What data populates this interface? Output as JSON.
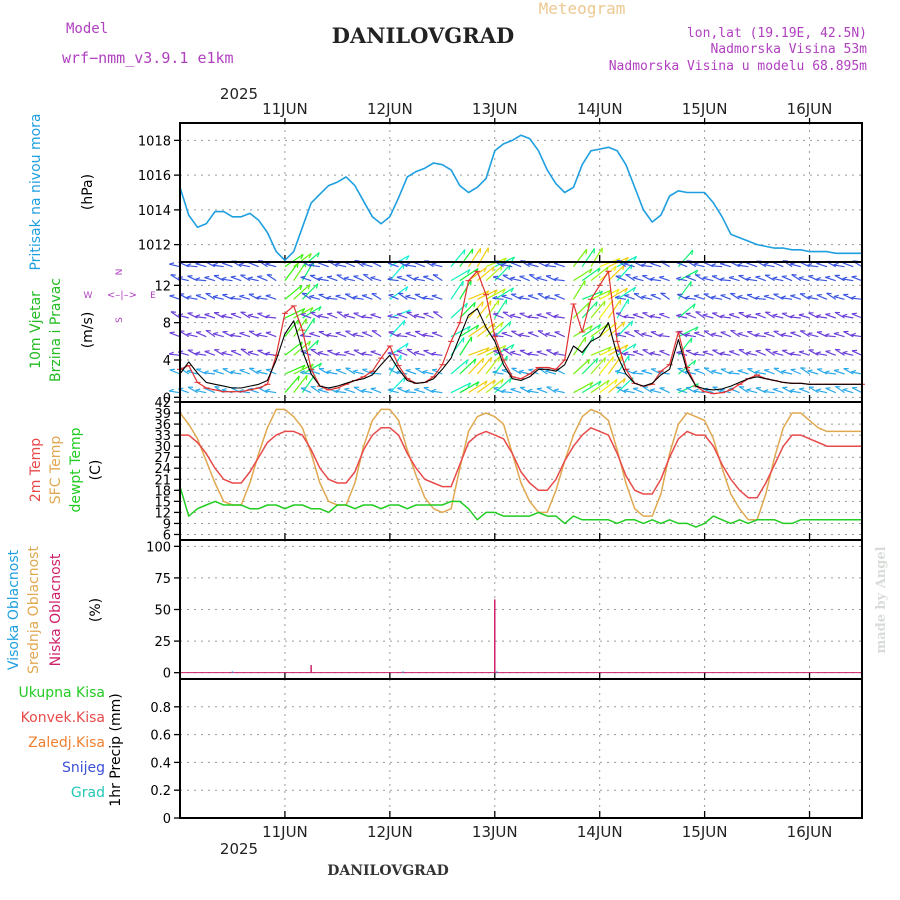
{
  "header": {
    "model_label": "Model",
    "model_name": "wrf−nmm_v3.9.1  e1km",
    "app_title": "Meteogram",
    "location": "DANILOVGRAD",
    "lonlat": "lon,lat (19.19E, 42.5N)",
    "elevation": "Nadmorska Visina 53m",
    "model_elevation": "Nadmorska Visina u modelu 68.895m",
    "year": "2025",
    "footer_location": "DANILOVGRAD",
    "credit": "made by Angel"
  },
  "colors": {
    "pressure": "#1e9fe0",
    "t2m": "#e84a4a",
    "sfc": "#e0a850",
    "dew": "#22cc22",
    "wind_speed": "#000000",
    "gust": "#e03030",
    "cloud_high": "#1e9fe0",
    "cloud_mid": "#e0a850",
    "cloud_low": "#d0206a",
    "title_purple": "#b040c0",
    "precip_total": "#22cc22",
    "precip_conv": "#e84a4a",
    "precip_frozen": "#f08030",
    "precip_snow": "#3b4fd8",
    "precip_grad": "#22c8b8"
  },
  "chart_data": [
    {
      "type": "line",
      "name": "pressure",
      "ylabel": "Pritisak na nivou mora",
      "unit": "(hPa)",
      "ylim": [
        1011,
        1019
      ],
      "yticks": [
        1012,
        1014,
        1016,
        1018
      ],
      "x_hours_since_10JUN_00UTC": [
        12,
        14,
        16,
        18,
        20,
        22,
        24,
        26,
        28,
        30,
        32,
        34,
        36,
        38,
        40,
        42,
        44,
        46,
        48,
        50,
        52,
        54,
        56,
        58,
        60,
        62,
        64,
        66,
        68,
        70,
        72,
        74,
        76,
        78,
        80,
        82,
        84,
        86,
        88,
        90,
        92,
        94,
        96,
        98,
        100,
        102,
        104,
        106,
        108,
        110,
        112,
        114,
        116,
        118,
        120,
        122,
        124,
        126,
        128,
        130,
        132,
        134,
        136,
        138,
        140,
        142,
        144,
        146,
        148,
        150,
        152,
        154,
        156,
        158,
        160,
        162,
        164,
        166,
        168
      ],
      "values": [
        1015.3,
        1013.7,
        1013.0,
        1013.2,
        1013.9,
        1013.9,
        1013.6,
        1013.6,
        1013.8,
        1013.4,
        1012.7,
        1011.6,
        1011.1,
        1011.6,
        1013.0,
        1014.4,
        1014.9,
        1015.4,
        1015.6,
        1015.9,
        1015.4,
        1014.5,
        1013.6,
        1013.2,
        1013.6,
        1014.7,
        1015.9,
        1016.2,
        1016.4,
        1016.7,
        1016.6,
        1016.3,
        1015.4,
        1015.0,
        1015.3,
        1015.8,
        1017.4,
        1017.8,
        1018.0,
        1018.3,
        1018.1,
        1017.4,
        1016.3,
        1015.5,
        1015.0,
        1015.3,
        1016.6,
        1017.4,
        1017.5,
        1017.6,
        1017.4,
        1016.6,
        1015.3,
        1014.0,
        1013.3,
        1013.7,
        1014.8,
        1015.1,
        1015.0,
        1015.0,
        1015.0,
        1014.4,
        1013.6,
        1012.6,
        1012.4,
        1012.2,
        1012.0,
        1011.9,
        1011.8,
        1011.8,
        1011.7,
        1011.7,
        1011.6,
        1011.6,
        1011.6,
        1011.5,
        1011.5,
        1011.5,
        1011.5
      ]
    },
    {
      "type": "line",
      "name": "wind",
      "ylabel": "10m Vjetar Brzina i Pravac",
      "unit": "(m/s)",
      "ylim": [
        -0.5,
        14.5
      ],
      "yticks": [
        0,
        4,
        8,
        12
      ],
      "compass": {
        "n": "N",
        "s": "S",
        "e": "E",
        "w": "W"
      },
      "x_hours_since_10JUN_00UTC": [
        12,
        14,
        16,
        18,
        20,
        22,
        24,
        26,
        28,
        30,
        32,
        34,
        36,
        38,
        40,
        42,
        44,
        46,
        48,
        50,
        52,
        54,
        56,
        58,
        60,
        62,
        64,
        66,
        68,
        70,
        72,
        74,
        76,
        78,
        80,
        82,
        84,
        86,
        88,
        90,
        92,
        94,
        96,
        98,
        100,
        102,
        104,
        106,
        108,
        110,
        112,
        114,
        116,
        118,
        120,
        122,
        124,
        126,
        128,
        130,
        132,
        134,
        136,
        138,
        140,
        142,
        144,
        146,
        148,
        150,
        152,
        154,
        156,
        158,
        160,
        162,
        164,
        166,
        168
      ],
      "speed": [
        2.5,
        3.8,
        2.6,
        1.6,
        1.4,
        1.2,
        1.0,
        1.0,
        1.2,
        1.4,
        1.8,
        4.0,
        6.8,
        8.2,
        5.0,
        2.5,
        1.2,
        1.0,
        1.2,
        1.5,
        1.8,
        2.0,
        2.4,
        3.5,
        4.5,
        3.0,
        1.8,
        1.5,
        1.6,
        2.0,
        3.0,
        4.2,
        6.5,
        8.8,
        9.5,
        7.5,
        6.0,
        3.5,
        2.0,
        1.8,
        2.2,
        3.0,
        3.0,
        2.8,
        3.5,
        5.5,
        4.8,
        6.0,
        6.5,
        8.0,
        4.5,
        2.5,
        1.5,
        1.2,
        1.5,
        2.4,
        3.0,
        6.2,
        2.8,
        1.2,
        0.9,
        0.8,
        0.9,
        1.2,
        1.6,
        2.0,
        2.2,
        2.0,
        1.8,
        1.6,
        1.5,
        1.5,
        1.4,
        1.4,
        1.4,
        1.4,
        1.4,
        1.4,
        1.4
      ],
      "gust": [
        3.0,
        3.4,
        1.6,
        1.0,
        0.8,
        0.6,
        0.6,
        0.6,
        0.8,
        1.0,
        1.4,
        4.5,
        9.0,
        9.8,
        7.2,
        3.0,
        1.2,
        0.8,
        1.0,
        1.4,
        1.8,
        2.2,
        2.8,
        4.2,
        5.5,
        3.4,
        2.0,
        1.5,
        1.6,
        2.2,
        3.5,
        6.0,
        8.0,
        12.5,
        13.5,
        11.0,
        6.5,
        4.0,
        2.2,
        2.0,
        2.5,
        3.2,
        3.2,
        3.0,
        4.0,
        10.0,
        7.0,
        10.5,
        12.0,
        13.5,
        6.0,
        3.0,
        1.5,
        1.2,
        1.4,
        2.8,
        3.5,
        7.0,
        3.2,
        1.2,
        0.6,
        0.4,
        0.5,
        0.8,
        1.4,
        2.0,
        2.4,
        2.0,
        1.8,
        1.6,
        1.5,
        1.5,
        1.4,
        1.4,
        1.4,
        1.4,
        1.4,
        1.4,
        1.4
      ]
    },
    {
      "type": "line",
      "name": "temperature",
      "ylabel": "2m Temp SFC Temp dewpt Temp",
      "unit": "(C)",
      "ylim": [
        4.5,
        42
      ],
      "yticks": [
        6,
        9,
        12,
        15,
        18,
        21,
        24,
        27,
        30,
        33,
        36,
        39,
        42
      ],
      "legend": {
        "t2m": "2m Temp",
        "sfc": "SFC Temp",
        "dew": "dewpt Temp"
      },
      "x_hours_since_10JUN_00UTC": [
        12,
        14,
        16,
        18,
        20,
        22,
        24,
        26,
        28,
        30,
        32,
        34,
        36,
        38,
        40,
        42,
        44,
        46,
        48,
        50,
        52,
        54,
        56,
        58,
        60,
        62,
        64,
        66,
        68,
        70,
        72,
        74,
        76,
        78,
        80,
        82,
        84,
        86,
        88,
        90,
        92,
        94,
        96,
        98,
        100,
        102,
        104,
        106,
        108,
        110,
        112,
        114,
        116,
        118,
        120,
        122,
        124,
        126,
        128,
        130,
        132,
        134,
        136,
        138,
        140,
        142,
        144,
        146,
        148,
        150,
        152,
        154,
        156,
        158,
        160,
        162,
        164,
        166,
        168
      ],
      "t2m": [
        33,
        33,
        31,
        28,
        24,
        21,
        20,
        20,
        23,
        27,
        31,
        33,
        34,
        34,
        33,
        29,
        24,
        21,
        20,
        20,
        23,
        29,
        33,
        35,
        35,
        33,
        28,
        24,
        21,
        20,
        19,
        19,
        25,
        31,
        33,
        34,
        33,
        32,
        28,
        23,
        20,
        18,
        18,
        21,
        26,
        30,
        33,
        35,
        34,
        33,
        28,
        22,
        18,
        17,
        17,
        21,
        27,
        32,
        34,
        33,
        33,
        30,
        25,
        21,
        18,
        16,
        16,
        20,
        25,
        30,
        33,
        33,
        32,
        31,
        30,
        30,
        30,
        30,
        30
      ],
      "sfc": [
        39,
        36,
        32,
        26,
        20,
        15,
        14,
        14,
        20,
        28,
        35,
        40,
        40,
        38,
        35,
        28,
        20,
        15,
        14,
        14,
        20,
        30,
        37,
        40,
        40,
        37,
        29,
        22,
        16,
        13,
        12,
        13,
        24,
        34,
        38,
        39,
        38,
        36,
        28,
        20,
        15,
        12,
        12,
        18,
        26,
        33,
        38,
        40,
        39,
        37,
        29,
        20,
        13,
        11,
        11,
        17,
        28,
        36,
        39,
        38,
        37,
        32,
        24,
        17,
        13,
        10,
        10,
        17,
        27,
        35,
        39,
        39,
        37,
        35,
        34,
        34,
        34,
        34,
        34
      ],
      "dew": [
        19,
        11,
        13,
        14,
        15,
        14,
        14,
        14,
        13,
        13,
        14,
        14,
        13,
        14,
        14,
        13,
        13,
        12,
        14,
        14,
        13,
        14,
        14,
        13,
        14,
        14,
        13,
        14,
        14,
        14,
        14,
        15,
        15,
        13,
        10,
        12,
        12,
        11,
        11,
        11,
        11,
        12,
        11,
        11,
        9,
        11,
        10,
        10,
        10,
        10,
        9,
        10,
        10,
        9,
        10,
        9,
        10,
        9,
        9,
        8,
        9,
        11,
        10,
        9,
        10,
        9,
        10,
        10,
        10,
        9,
        9,
        10,
        10,
        10,
        10,
        10,
        10,
        10,
        10
      ]
    },
    {
      "type": "bar",
      "name": "cloud_cover",
      "ylabel": "Visoka Oblacnost Srednja Oblacnost Niska Oblacnost",
      "unit": "(%)",
      "ylim": [
        -5,
        105
      ],
      "yticks": [
        0,
        25,
        50,
        75,
        100
      ],
      "legend": {
        "high": "Visoka Oblacnost",
        "mid": "Srednja Oblacnost",
        "low": "Niska Oblacnost"
      },
      "events": [
        {
          "x_hours_since_10JUN_00UTC": 42,
          "series": "low",
          "value": 6
        },
        {
          "x_hours_since_10JUN_00UTC": 84,
          "series": "low",
          "value": 58
        },
        {
          "x_hours_since_10JUN_00UTC": 84.5,
          "series": "high",
          "value": 1
        },
        {
          "x_hours_since_10JUN_00UTC": 63,
          "series": "high",
          "value": 1
        },
        {
          "x_hours_since_10JUN_00UTC": 24,
          "series": "high",
          "value": 1
        }
      ]
    },
    {
      "type": "bar",
      "name": "precipitation",
      "ylabel": "1hr Precip (mm)",
      "unit": "(mm)",
      "ylim": [
        0,
        1
      ],
      "yticks": [
        0,
        0.2,
        0.4,
        0.6,
        0.8
      ],
      "ytick_labels": [
        "0",
        "0.2",
        "0.4",
        "0.6",
        "0.8"
      ],
      "legend": [
        "Ukupna Kisa",
        "Konvek.Kisa",
        "Zaledj.Kisa",
        "Snijeg",
        "Grad"
      ],
      "values_total": [
        0
      ]
    },
    {
      "type": "axis",
      "name": "time_axis",
      "day_labels": [
        "11JUN",
        "12JUN",
        "13JUN",
        "14JUN",
        "15JUN",
        "16JUN"
      ],
      "day_hours_since_10JUN_00UTC": [
        36,
        60,
        84,
        108,
        132,
        156
      ],
      "xlim_hours_since_10JUN_00UTC": [
        12,
        168
      ]
    }
  ]
}
